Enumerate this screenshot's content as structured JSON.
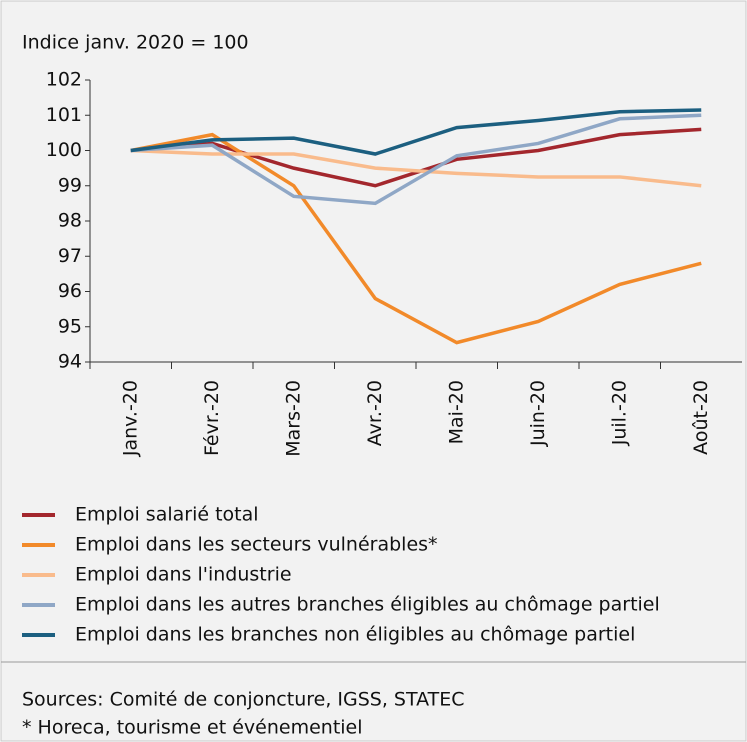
{
  "chart_data": {
    "type": "line",
    "title": "Indice janv. 2020 = 100",
    "categories": [
      "Janv.-20",
      "Févr.-20",
      "Mars-20",
      "Avr.-20",
      "Mai-20",
      "Juin-20",
      "Juil.-20",
      "Août-20"
    ],
    "series": [
      {
        "name": "Emploi salarié total",
        "color": "#a3272d",
        "values": [
          100,
          100.2,
          99.5,
          99.0,
          99.75,
          100.0,
          100.45,
          100.6
        ]
      },
      {
        "name": "Emploi dans les secteurs vulnérables*",
        "color": "#f28a2a",
        "values": [
          100,
          100.45,
          99.0,
          95.8,
          94.55,
          95.15,
          96.2,
          96.8
        ]
      },
      {
        "name": "Emploi dans l'industrie",
        "color": "#f9bb8c",
        "values": [
          100,
          99.9,
          99.9,
          99.5,
          99.35,
          99.25,
          99.25,
          99.0
        ]
      },
      {
        "name": "Emploi dans les autres branches éligibles au chômage partiel",
        "color": "#8fa7c6",
        "values": [
          100,
          100.15,
          98.7,
          98.5,
          99.85,
          100.2,
          100.9,
          101.0
        ]
      },
      {
        "name": "Emploi dans les branches non éligibles au chômage partiel",
        "color": "#1c5f80",
        "values": [
          100,
          100.3,
          100.35,
          99.9,
          100.65,
          100.85,
          101.1,
          101.15
        ]
      }
    ],
    "ylim": [
      94,
      102
    ],
    "yticks": [
      94,
      95,
      96,
      97,
      98,
      99,
      100,
      101,
      102
    ],
    "grid": false,
    "sources": "Sources: Comité de conjoncture, IGSS, STATEC",
    "footnote": "* Horeca, tourisme et événementiel"
  }
}
